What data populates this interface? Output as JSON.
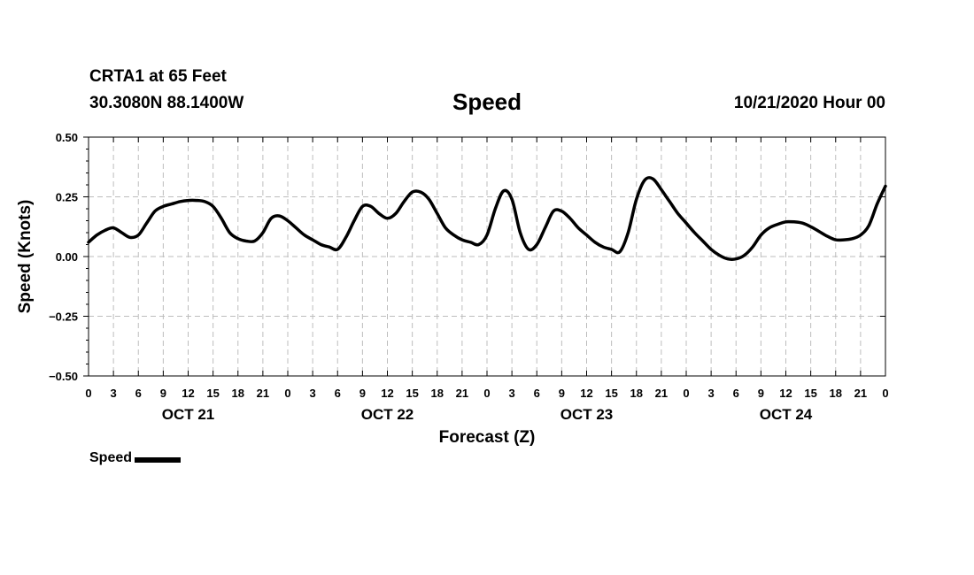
{
  "header": {
    "station": "CRTA1 at 65 Feet",
    "coordinates": "30.3080N 88.1400W",
    "title": "Speed",
    "timestamp": "10/21/2020 Hour 00"
  },
  "legend": {
    "label": "Speed",
    "color": "#000000"
  },
  "chart_data": {
    "type": "line",
    "title": "Speed",
    "xlabel": "Forecast (Z)",
    "ylabel": "Speed (Knots)",
    "ylim": [
      -0.5,
      0.5
    ],
    "xlim": [
      0,
      96
    ],
    "x_unit": "hours from 10/21/2020 00Z",
    "yticks": [
      "0.50",
      "0.25",
      "0.00",
      "−0.25",
      "−0.50"
    ],
    "ytick_values": [
      0.5,
      0.25,
      0.0,
      -0.25,
      -0.5
    ],
    "xticks": [
      "0",
      "3",
      "6",
      "9",
      "12",
      "15",
      "18",
      "21",
      "0",
      "3",
      "6",
      "9",
      "12",
      "15",
      "18",
      "21",
      "0",
      "3",
      "6",
      "9",
      "12",
      "15",
      "18",
      "21",
      "0",
      "3",
      "6",
      "9",
      "12",
      "15",
      "18",
      "21",
      "0"
    ],
    "day_labels": [
      "OCT 21",
      "OCT 22",
      "OCT 23",
      "OCT 24"
    ],
    "grid": true,
    "series": [
      {
        "name": "Speed",
        "color": "#000000",
        "x": [
          0,
          1,
          2,
          3,
          4,
          5,
          6,
          7,
          8,
          9,
          10,
          11,
          12,
          13,
          14,
          15,
          16,
          17,
          18,
          19,
          20,
          21,
          22,
          23,
          24,
          25,
          26,
          27,
          28,
          29,
          30,
          31,
          32,
          33,
          34,
          35,
          36,
          37,
          38,
          39,
          40,
          41,
          42,
          43,
          44,
          45,
          46,
          47,
          48,
          49,
          50,
          51,
          52,
          53,
          54,
          55,
          56,
          57,
          58,
          59,
          60,
          61,
          62,
          63,
          64,
          65,
          66,
          67,
          68,
          69,
          70,
          71,
          72,
          73,
          74,
          75,
          76,
          77,
          78,
          79,
          80,
          81,
          82,
          83,
          84,
          85,
          86,
          87,
          88,
          89,
          90,
          91,
          92,
          93,
          94,
          95,
          96
        ],
        "y": [
          0.06,
          0.09,
          0.11,
          0.12,
          0.1,
          0.08,
          0.09,
          0.14,
          0.19,
          0.21,
          0.22,
          0.23,
          0.235,
          0.235,
          0.23,
          0.21,
          0.16,
          0.1,
          0.075,
          0.065,
          0.065,
          0.1,
          0.16,
          0.17,
          0.15,
          0.12,
          0.09,
          0.07,
          0.05,
          0.04,
          0.03,
          0.08,
          0.15,
          0.21,
          0.21,
          0.18,
          0.16,
          0.18,
          0.23,
          0.27,
          0.27,
          0.24,
          0.18,
          0.12,
          0.09,
          0.07,
          0.06,
          0.05,
          0.09,
          0.2,
          0.275,
          0.24,
          0.1,
          0.03,
          0.05,
          0.12,
          0.19,
          0.19,
          0.16,
          0.12,
          0.09,
          0.06,
          0.04,
          0.03,
          0.02,
          0.1,
          0.24,
          0.32,
          0.325,
          0.28,
          0.23,
          0.18,
          0.14,
          0.1,
          0.065,
          0.03,
          0.005,
          -0.01,
          -0.01,
          0.005,
          0.04,
          0.09,
          0.12,
          0.135,
          0.145,
          0.145,
          0.14,
          0.125,
          0.105,
          0.085,
          0.07,
          0.07,
          0.075,
          0.09,
          0.13,
          0.22,
          0.295
        ]
      }
    ]
  }
}
